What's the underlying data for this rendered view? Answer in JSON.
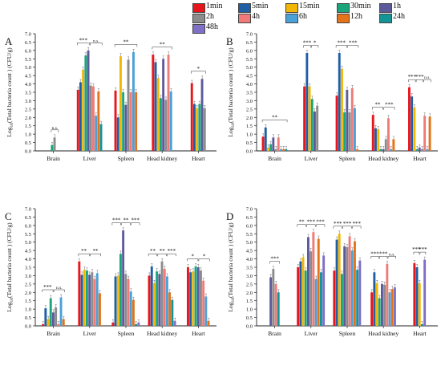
{
  "legend": [
    {
      "name": "1min",
      "color": "#e8161c"
    },
    {
      "name": "5min",
      "color": "#1f5fa6"
    },
    {
      "name": "15min",
      "color": "#f2b705"
    },
    {
      "name": "30min",
      "color": "#1aa57a"
    },
    {
      "name": "1h",
      "color": "#5d5a9c"
    },
    {
      "name": "2h",
      "color": "#8c8c8c"
    },
    {
      "name": "4h",
      "color": "#f07a78"
    },
    {
      "name": "6h",
      "color": "#4aa1d8"
    },
    {
      "name": "12h",
      "color": "#e4731a"
    },
    {
      "name": "24h",
      "color": "#139497"
    },
    {
      "name": "48h",
      "color": "#7f6fc7"
    }
  ],
  "chart_data": [
    {
      "type": "bar",
      "panel": "A",
      "ylabel": "Log10(Total bacteria count ) (CFU/g)",
      "ylim": [
        0,
        7
      ],
      "yticks": [
        "0.0",
        "0.5",
        "1.0",
        "1.5",
        "2.0",
        "2.5",
        "3.0",
        "3.5",
        "4.0",
        "4.5",
        "5.0",
        "5.5",
        "6.0",
        "6.5",
        "7.0"
      ],
      "categories": [
        "Brain",
        "Liver",
        "Spleen",
        "Head kidney",
        "Heart"
      ],
      "values": [
        [
          0,
          0,
          0,
          0.35,
          0,
          0.8,
          0,
          0,
          0,
          0,
          0
        ],
        [
          3.65,
          4.1,
          4.85,
          5.7,
          6.0,
          3.9,
          3.85,
          2.1,
          3.55,
          1.6,
          0
        ],
        [
          3.6,
          2.0,
          5.65,
          3.5,
          2.75,
          5.45,
          3.5,
          5.9,
          3.5,
          0,
          0
        ],
        [
          5.75,
          5.3,
          4.35,
          3.15,
          5.5,
          3.05,
          5.75,
          3.55,
          0,
          0,
          0
        ],
        [
          4.05,
          2.8,
          2.55,
          2.8,
          4.3,
          2.55,
          0,
          0,
          0,
          0,
          0
        ]
      ],
      "annotations": [
        {
          "group": "Brain",
          "text": "n.s."
        },
        {
          "group": "Liver",
          "text": "***"
        },
        {
          "group": "Liver",
          "text": "n.s."
        },
        {
          "group": "Spleen",
          "text": "**"
        },
        {
          "group": "Head kidney",
          "text": "**"
        },
        {
          "group": "Heart",
          "text": "*"
        }
      ]
    },
    {
      "type": "bar",
      "panel": "B",
      "ylabel": "Log10(Total bacteria count ) (CFU/g)",
      "ylim": [
        0,
        7
      ],
      "yticks": [
        "0.0",
        "0.5",
        "1.0",
        "1.5",
        "2.0",
        "2.5",
        "3.0",
        "3.5",
        "4.0",
        "4.5",
        "5.0",
        "5.5",
        "6.0",
        "6.5",
        "7.0"
      ],
      "categories": [
        "Brain",
        "Liver",
        "Spleen",
        "Head kidney",
        "Heart"
      ],
      "values": [
        [
          0.85,
          1.4,
          0.2,
          0.4,
          0.8,
          0.1,
          0.8,
          0.1,
          0.1,
          0.1,
          0
        ],
        [
          3.85,
          5.85,
          3.85,
          3.1,
          2.35,
          2.7,
          0,
          0,
          0,
          0,
          0
        ],
        [
          3.3,
          5.85,
          4.9,
          2.3,
          3.65,
          2.3,
          3.75,
          2.55,
          0.1,
          0,
          0
        ],
        [
          2.15,
          1.35,
          1.3,
          0.1,
          0.1,
          0.7,
          1.95,
          0.1,
          0.7,
          0,
          0
        ],
        [
          3.8,
          3.25,
          2.6,
          0.1,
          0.2,
          0.1,
          2.1,
          0.1,
          2.05,
          0,
          0
        ]
      ],
      "annotations": [
        {
          "group": "Brain",
          "text": "**"
        },
        {
          "group": "Liver",
          "text": "***"
        },
        {
          "group": "Liver",
          "text": "*"
        },
        {
          "group": "Spleen",
          "text": "***"
        },
        {
          "group": "Spleen",
          "text": "***"
        },
        {
          "group": "Head kidney",
          "text": "**"
        },
        {
          "group": "Head kidney",
          "text": "***"
        },
        {
          "group": "Heart",
          "text": "***"
        },
        {
          "group": "Heart",
          "text": "***"
        },
        {
          "group": "Heart",
          "text": "n.s."
        }
      ]
    },
    {
      "type": "bar",
      "panel": "C",
      "ylabel": "Log10(Total bacteria count ) (CFU/g)",
      "ylim": [
        0,
        7
      ],
      "yticks": [
        "0.0",
        "0.5",
        "1.0",
        "1.5",
        "2.0",
        "2.5",
        "3.0",
        "3.5",
        "4.0",
        "4.5",
        "5.0",
        "5.5",
        "6.0",
        "6.5",
        "7.0"
      ],
      "categories": [
        "Brain",
        "Liver",
        "Spleen",
        "Head kidney",
        "Heart"
      ],
      "values": [
        [
          0.1,
          1.05,
          0.4,
          1.65,
          0.8,
          1.1,
          0.1,
          1.7,
          0.4,
          0,
          0
        ],
        [
          3.85,
          3.05,
          3.35,
          3.3,
          3.05,
          3.2,
          2.8,
          3.15,
          1.95,
          0,
          0
        ],
        [
          0.2,
          2.95,
          3.0,
          4.3,
          5.7,
          3.1,
          2.8,
          2.05,
          1.55,
          0.1,
          0.2
        ],
        [
          3.0,
          3.55,
          2.55,
          3.25,
          3.1,
          3.85,
          3.4,
          2.95,
          2.0,
          1.55,
          0.3
        ],
        [
          3.5,
          3.2,
          3.25,
          3.55,
          3.5,
          3.3,
          2.7,
          1.75,
          0.3,
          0,
          0
        ]
      ],
      "annotations": [
        {
          "group": "Brain",
          "text": "***"
        },
        {
          "group": "Brain",
          "text": "n.s."
        },
        {
          "group": "Liver",
          "text": "**"
        },
        {
          "group": "Liver",
          "text": "**"
        },
        {
          "group": "Spleen",
          "text": "***"
        },
        {
          "group": "Spleen",
          "text": "**"
        },
        {
          "group": "Spleen",
          "text": "***"
        },
        {
          "group": "Head kidney",
          "text": "**"
        },
        {
          "group": "Head kidney",
          "text": "**"
        },
        {
          "group": "Head kidney",
          "text": "***"
        },
        {
          "group": "Heart",
          "text": "*"
        },
        {
          "group": "Heart",
          "text": "*"
        }
      ]
    },
    {
      "type": "bar",
      "panel": "D",
      "ylabel": "Log10(Total bacteria count ) (CFU/g)",
      "ylim": [
        0,
        7
      ],
      "yticks": [
        "0.0",
        "0.5",
        "1.0",
        "1.5",
        "2.0",
        "2.5",
        "3.0",
        "3.5",
        "4.0",
        "4.5",
        "5.0",
        "5.5",
        "6.0",
        "6.5",
        "7.0"
      ],
      "categories": [
        "Brain",
        "Liver",
        "Spleen",
        "Head kidney",
        "Heart"
      ],
      "values": [
        [
          0,
          0,
          0,
          0,
          2.9,
          3.4,
          2.5,
          0,
          0,
          2.0,
          0
        ],
        [
          3.5,
          3.85,
          4.1,
          3.3,
          5.3,
          4.45,
          5.6,
          2.8,
          5.2,
          3.2,
          4.2
        ],
        [
          3.3,
          5.15,
          5.5,
          3.1,
          4.75,
          4.7,
          5.35,
          4.5,
          5.05,
          3.35,
          3.9
        ],
        [
          2.0,
          3.2,
          2.55,
          1.65,
          2.5,
          2.45,
          3.7,
          2.0,
          2.2,
          0,
          2.3
        ],
        [
          3.75,
          3.5,
          2.55,
          0,
          0,
          0,
          0,
          0,
          0,
          0.1,
          3.95
        ]
      ],
      "annotations": [
        {
          "group": "Brain",
          "text": "***"
        },
        {
          "group": "Liver",
          "text": "**"
        },
        {
          "group": "Liver",
          "text": "***"
        },
        {
          "group": "Liver",
          "text": "***"
        },
        {
          "group": "Spleen",
          "text": "***"
        },
        {
          "group": "Spleen",
          "text": "***"
        },
        {
          "group": "Spleen",
          "text": "***"
        },
        {
          "group": "Head kidney",
          "text": "***"
        },
        {
          "group": "Head kidney",
          "text": "***"
        },
        {
          "group": "Head kidney",
          "text": "n.s."
        },
        {
          "group": "Heart",
          "text": "***"
        },
        {
          "group": "Heart",
          "text": "***"
        }
      ]
    }
  ]
}
